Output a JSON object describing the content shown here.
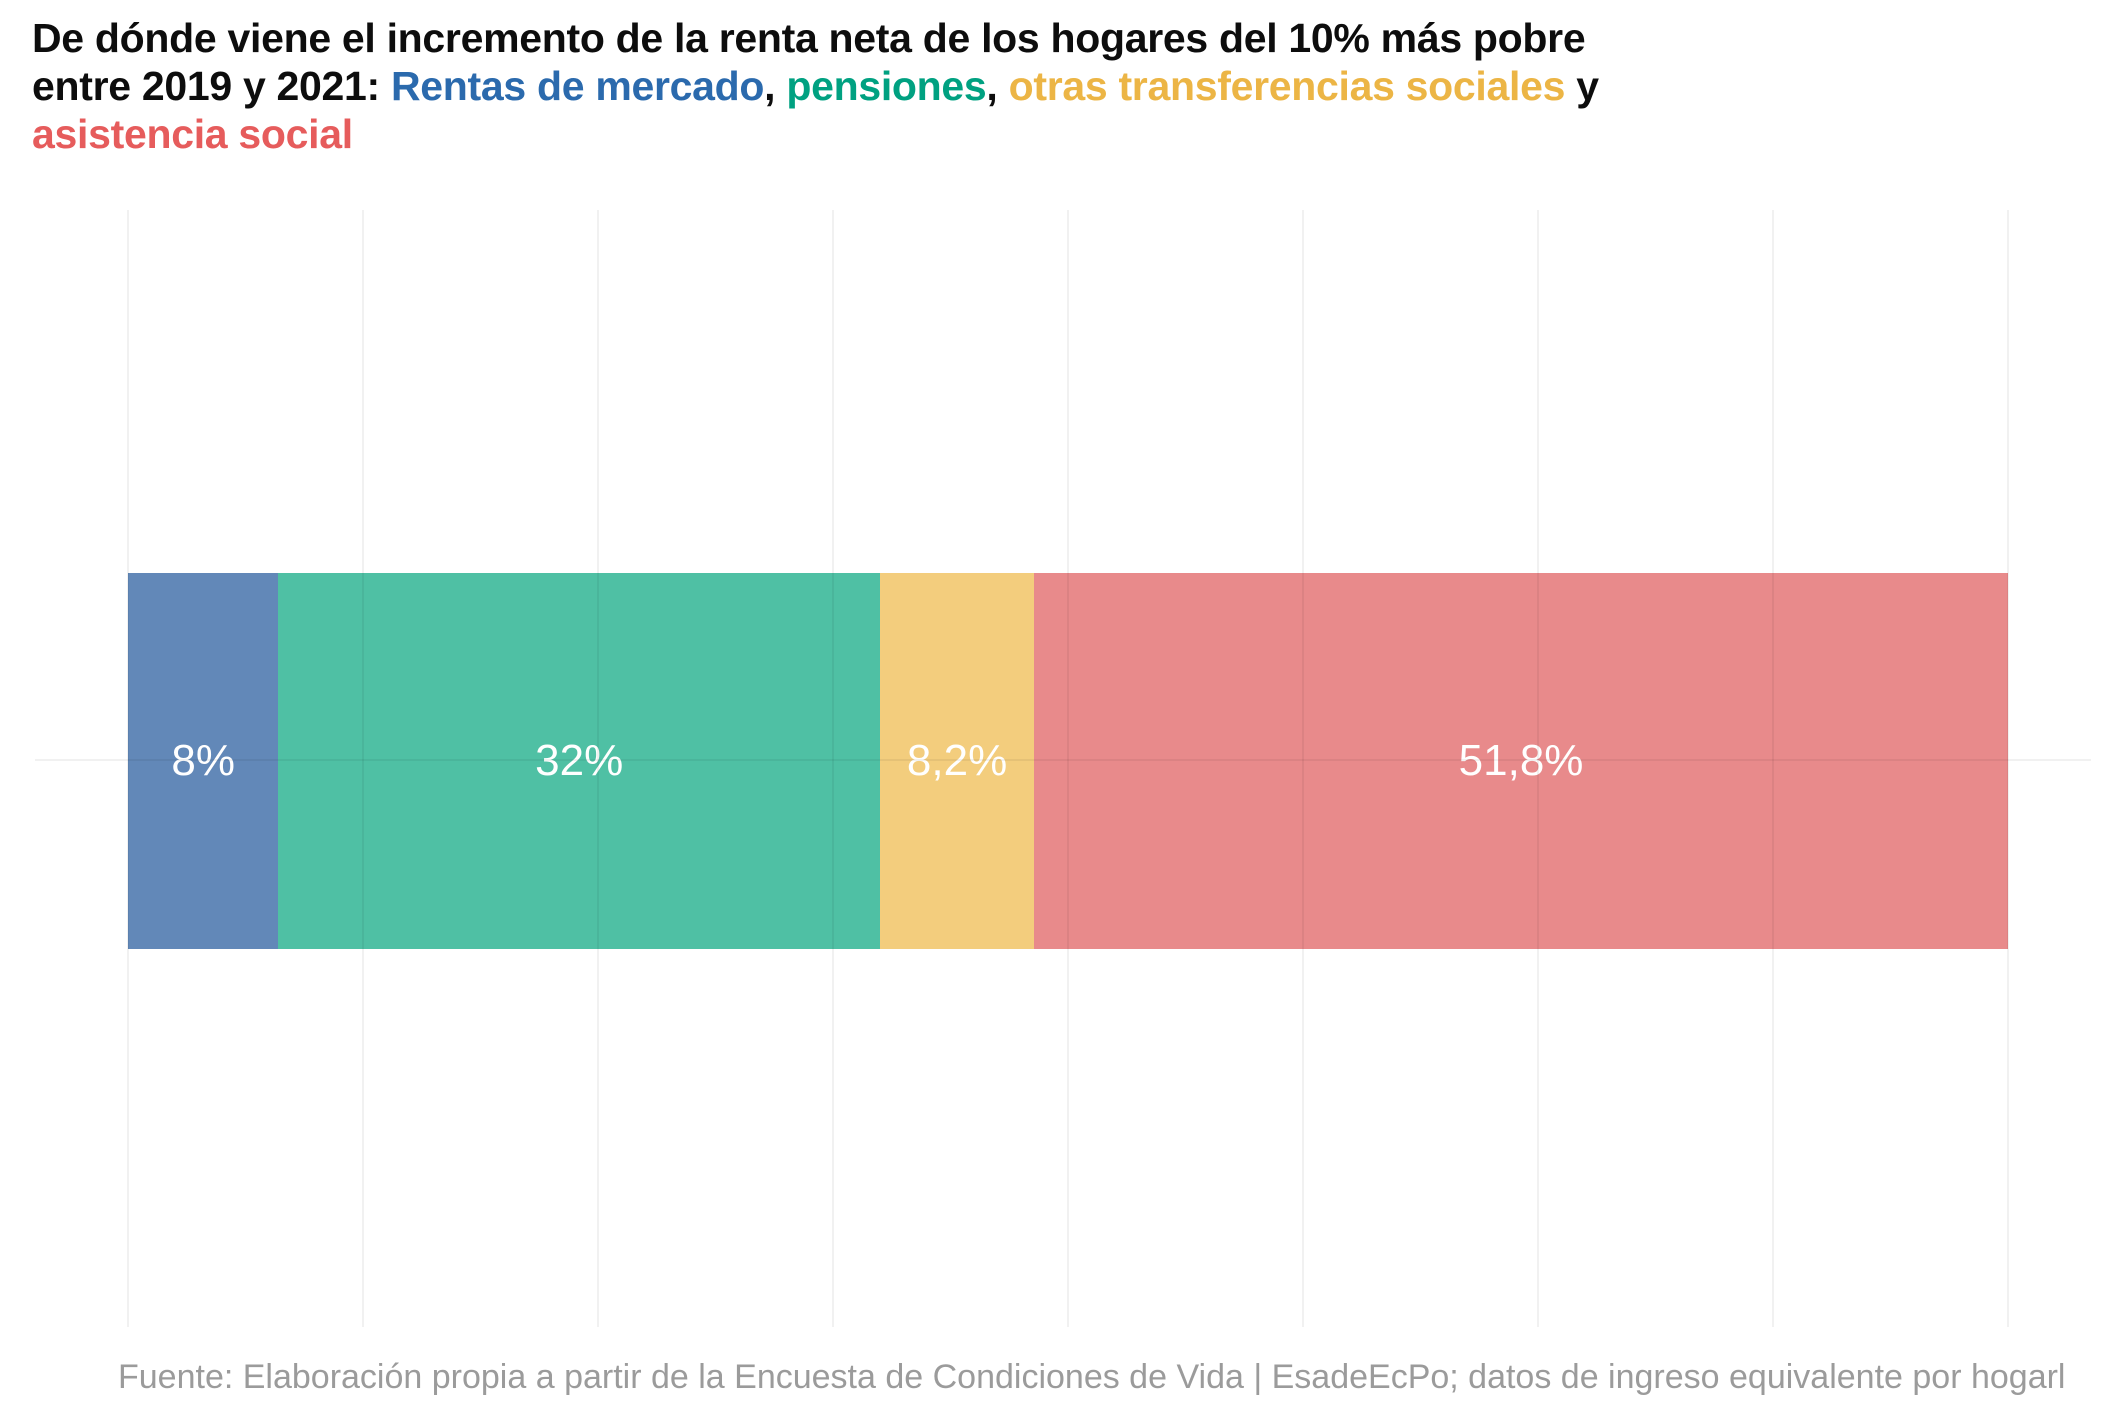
{
  "title": {
    "segments": [
      {
        "text": "De dónde viene el incremento de la renta neta de los hogares del 10% más pobre",
        "color": "#0d0d0d"
      },
      {
        "text": "entre 2019 y 2021: ",
        "color": "#0d0d0d"
      },
      {
        "text": "Rentas de mercado",
        "color": "#2b6aad"
      },
      {
        "text": ", ",
        "color": "#0d0d0d"
      },
      {
        "text": "pensiones",
        "color": "#00a181"
      },
      {
        "text": ", ",
        "color": "#0d0d0d"
      },
      {
        "text": "otras transferencias sociales",
        "color": "#ecb545"
      },
      {
        "text": " y",
        "color": "#0d0d0d"
      },
      {
        "text": "asistencia social",
        "color": "#e65c5c"
      }
    ]
  },
  "footer": {
    "text": "Fuente: Elaboración propia a partir de la Encuesta de Condiciones de Vida | EsadeEcPo; datos de ingreso equivalente por hogarl"
  },
  "chart_data": {
    "type": "bar",
    "orientation": "horizontal-stacked",
    "categories": [
      ""
    ],
    "series": [
      {
        "name": "Rentas de mercado",
        "value": 8,
        "label": "8%",
        "color": "#6288b8"
      },
      {
        "name": "Pensiones",
        "value": 32,
        "label": "32%",
        "color": "#4fc0a4"
      },
      {
        "name": "Otras transferencias sociales",
        "value": 8.2,
        "label": "8,2%",
        "color": "#f3cd7d"
      },
      {
        "name": "Asistencia social",
        "value": 51.8,
        "label": "51,8%",
        "color": "#e88a8b"
      }
    ],
    "xlim": [
      0,
      100
    ],
    "unit": "%",
    "grid": "vertical gridlines every 12.5%, one horizontal line at bar center",
    "legend_position": "inline-in-title",
    "value_labels": "inside segments, white, comma decimal separator"
  }
}
